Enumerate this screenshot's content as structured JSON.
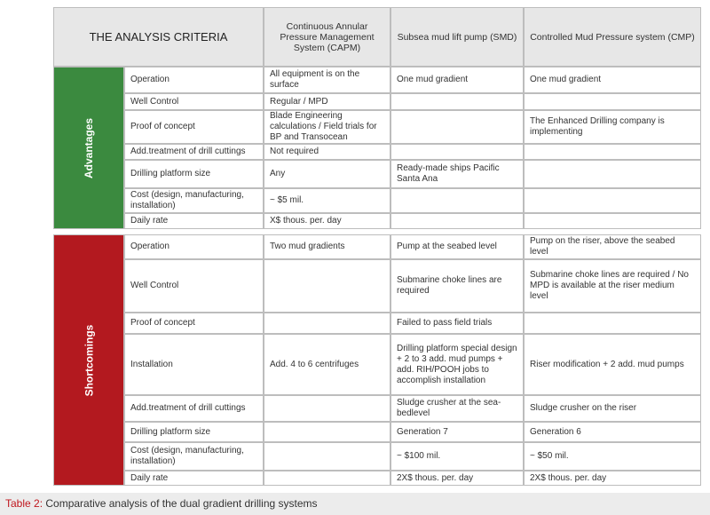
{
  "header": {
    "title": "THE ANALYSIS CRITERIA",
    "columns": [
      "Continuous Annular Pressure Management System (CAPM)",
      "Subsea mud lift pump (SMD)",
      "Controlled Mud Pressure system (CMP)"
    ]
  },
  "groups": [
    {
      "label": "Advantages",
      "rows": [
        [
          "Operation",
          "All equipment is on the surface",
          "One mud gradient",
          "One mud gradient"
        ],
        [
          "Well Control",
          "Regular / MPD",
          null,
          null
        ],
        [
          "Proof of concept",
          "Blade Engineering calculations / Field trials for BP and Transocean",
          null,
          "The Enhanced Drilling company is implementing"
        ],
        [
          "Add.treatment of drill cuttings",
          "Not required",
          null,
          null
        ],
        [
          "Drilling platform size",
          "Any",
          "Ready-made ships Pacific Santa Ana",
          null
        ],
        [
          "Cost (design, manufacturing, installation)",
          "~ $5 mil.",
          null,
          null
        ],
        [
          "Daily rate",
          "X$ thous. per. day",
          null,
          null
        ]
      ]
    },
    {
      "label": "Shortcomings",
      "rows": [
        [
          "Operation",
          "Two mud gradients",
          "Pump at the seabed level",
          "Pump on the riser, above the seabed level"
        ],
        [
          "Well Control",
          null,
          "Submarine choke lines are required",
          "Submarine choke lines are required / No MPD is available at the riser medium level"
        ],
        [
          "Proof of concept",
          null,
          "Failed to pass field trials",
          null
        ],
        [
          "Installation",
          "Add. 4 to 6 centrifuges",
          "Drilling platform special design + 2 to 3 add. mud pumps + add. RIH/POOH jobs to accomplish installation",
          "Riser modification + 2 add. mud pumps"
        ],
        [
          "Add.treatment of drill cuttings",
          null,
          "Sludge crusher at the sea-bedlevel",
          "Sludge crusher on the riser"
        ],
        [
          "Drilling platform size",
          null,
          "Generation 7",
          "Generation 6"
        ],
        [
          "Cost (design, manufacturing, installation)",
          null,
          "~ $100 mil.",
          "~ $50 mil."
        ],
        [
          "Daily rate",
          null,
          "2X$ thous. per. day",
          "2X$ thous. per. day"
        ]
      ]
    }
  ],
  "caption": {
    "label": "Table 2:",
    "text": "Comparative analysis of the dual gradient drilling systems"
  }
}
